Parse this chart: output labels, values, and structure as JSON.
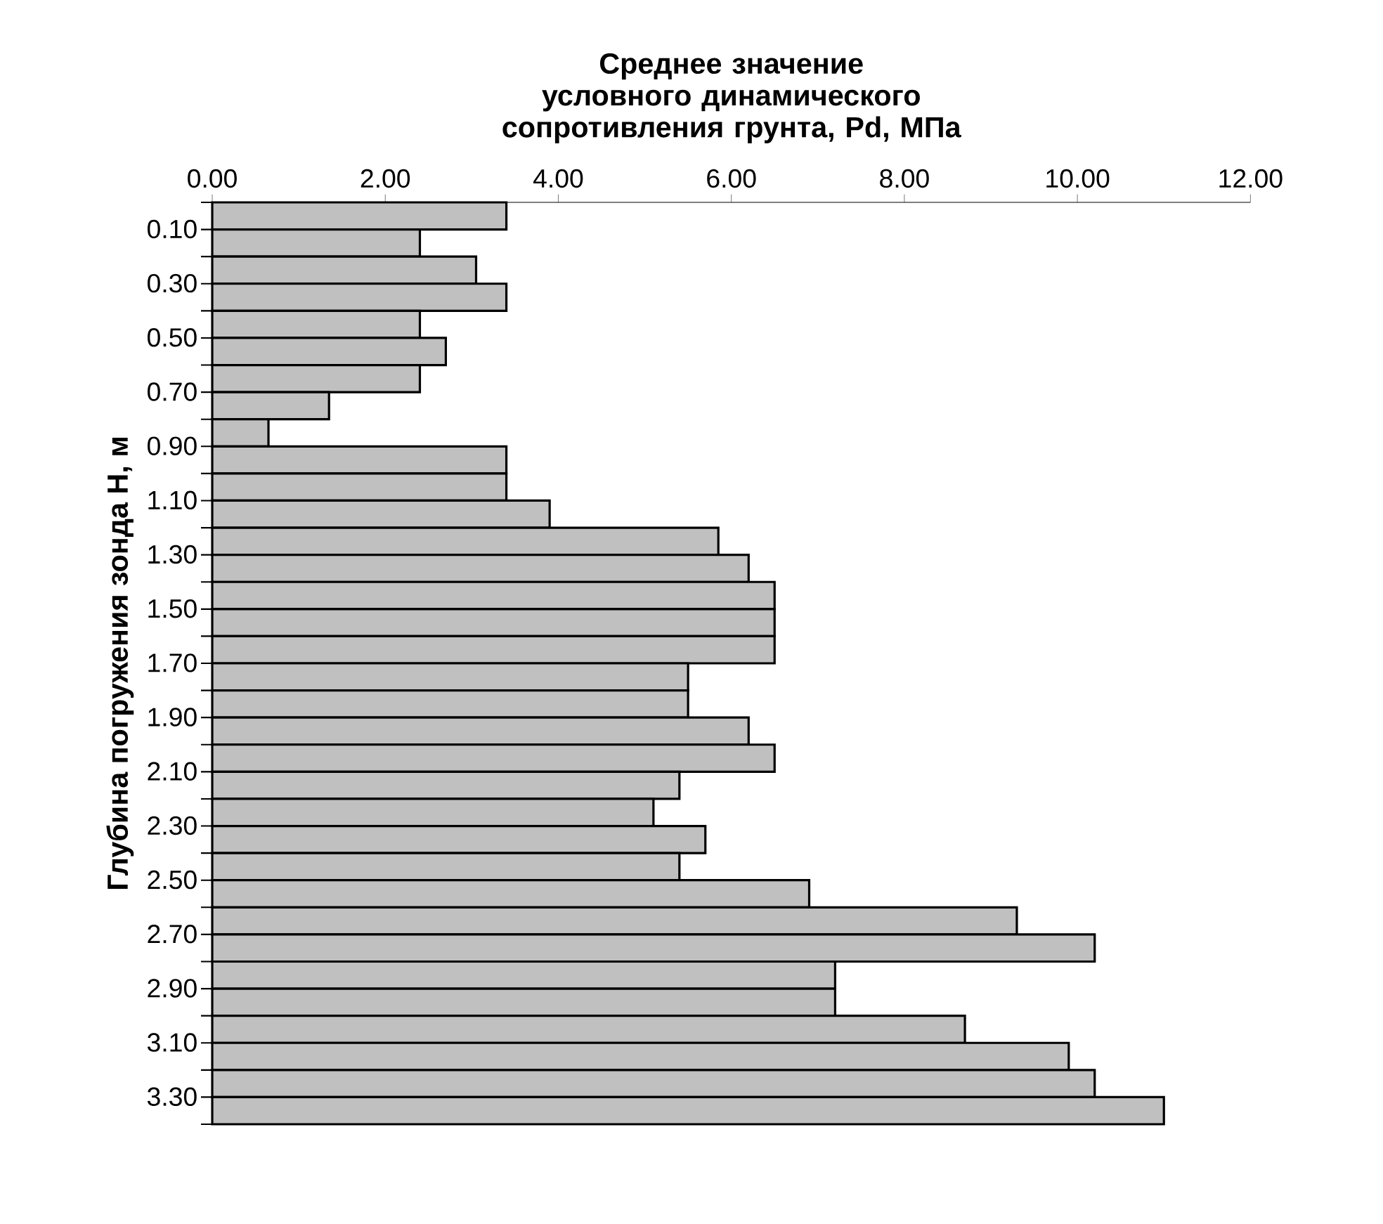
{
  "chart_data": {
    "type": "bar",
    "orientation": "horizontal",
    "title": "Среднее значение условного динамического сопротивления грунта, Pd, МПа",
    "ylabel": "Глубина погружения зонда Н, м",
    "categories": [
      "0.10",
      null,
      "0.30",
      null,
      "0.50",
      null,
      "0.70",
      null,
      "0.90",
      null,
      "1.10",
      null,
      "1.30",
      null,
      "1.50",
      null,
      "1.70",
      null,
      "1.90",
      null,
      "2.10",
      null,
      "2.30",
      null,
      "2.50",
      null,
      "2.70",
      null,
      "2.90",
      null,
      "3.10",
      null,
      "3.30",
      null
    ],
    "values": [
      3.4,
      2.4,
      3.05,
      3.4,
      2.4,
      2.7,
      2.4,
      1.35,
      0.65,
      3.4,
      3.4,
      3.9,
      5.85,
      6.2,
      6.5,
      6.5,
      6.5,
      5.5,
      5.5,
      6.2,
      6.5,
      5.4,
      5.1,
      5.7,
      5.4,
      6.9,
      9.3,
      10.2,
      7.2,
      7.2,
      8.7,
      9.9,
      10.2,
      11.0
    ],
    "color": "#c0c0c0",
    "xlim": [
      0,
      12
    ],
    "xticks": [
      {
        "value": 0,
        "label": "0.00"
      },
      {
        "value": 2,
        "label": "2.00"
      },
      {
        "value": 4,
        "label": "4.00"
      },
      {
        "value": 6,
        "label": "6.00"
      },
      {
        "value": 8,
        "label": "8.00"
      },
      {
        "value": 10,
        "label": "10.00"
      },
      {
        "value": 12,
        "label": "12.00"
      }
    ]
  }
}
